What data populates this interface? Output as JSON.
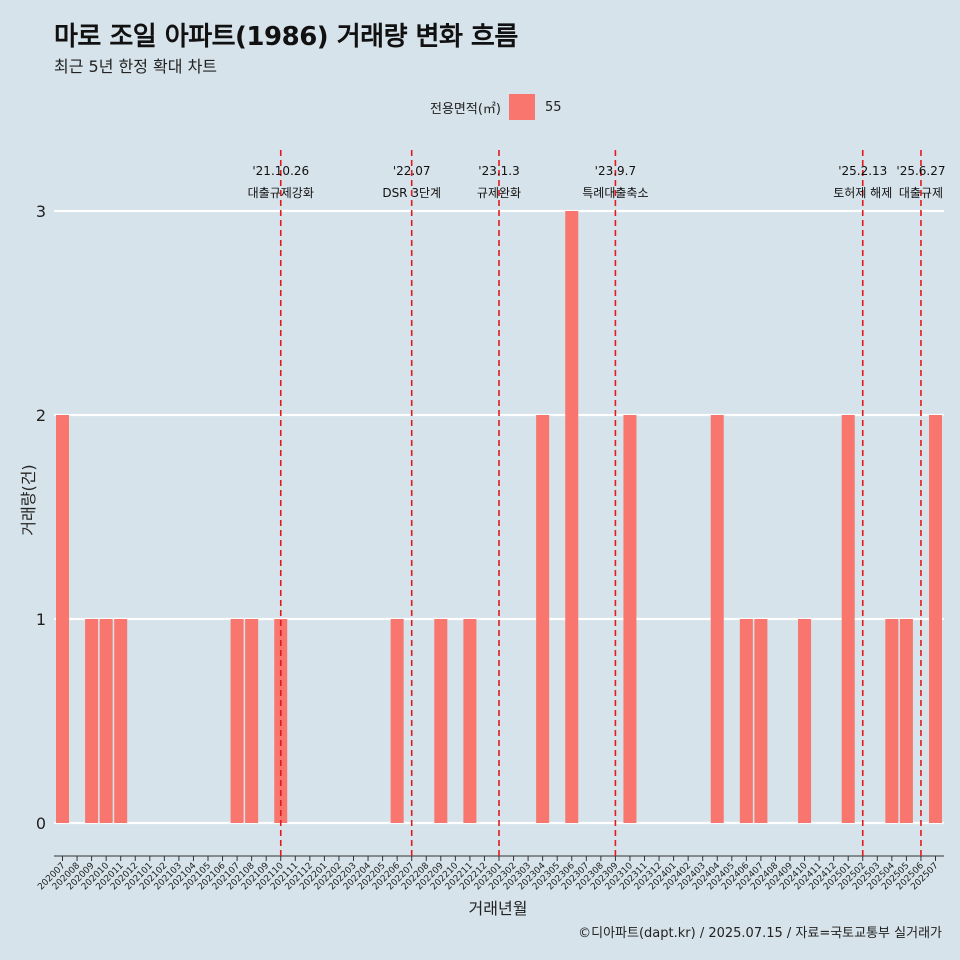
{
  "title": "마로 조일 아파트(1986) 거래량 변화 흐름",
  "subtitle": "최근 5년 한정 확대 차트",
  "caption": "©디아파트(dapt.kr) / 2025.07.15 / 자료=국토교통부 실거래가",
  "legend": {
    "title": "전용면적(㎡)",
    "item": "55"
  },
  "colors": {
    "background": "#d6e3ea",
    "bar": "#f8766d",
    "event_line": "#e31a1c",
    "grid": "#ffffff"
  },
  "chart_data": {
    "type": "bar",
    "xlabel": "거래년월",
    "ylabel": "거래량(건)",
    "ylim": [
      0,
      3
    ],
    "yticks": [
      0,
      1,
      2,
      3
    ],
    "categories": [
      "202007",
      "202008",
      "202009",
      "202010",
      "202011",
      "202012",
      "202101",
      "202102",
      "202103",
      "202104",
      "202105",
      "202106",
      "202107",
      "202108",
      "202109",
      "202110",
      "202111",
      "202112",
      "202201",
      "202202",
      "202203",
      "202204",
      "202205",
      "202206",
      "202207",
      "202208",
      "202209",
      "202210",
      "202211",
      "202212",
      "202301",
      "202302",
      "202303",
      "202304",
      "202305",
      "202306",
      "202307",
      "202308",
      "202309",
      "202310",
      "202311",
      "202312",
      "202401",
      "202402",
      "202403",
      "202404",
      "202405",
      "202406",
      "202407",
      "202408",
      "202409",
      "202410",
      "202411",
      "202412",
      "202501",
      "202502",
      "202503",
      "202504",
      "202505",
      "202506",
      "202507"
    ],
    "series": [
      {
        "name": "55",
        "values": [
          2,
          0,
          1,
          1,
          1,
          0,
          0,
          0,
          0,
          0,
          0,
          0,
          1,
          1,
          0,
          1,
          0,
          0,
          0,
          0,
          0,
          0,
          0,
          1,
          0,
          0,
          1,
          0,
          1,
          0,
          0,
          0,
          0,
          2,
          0,
          3,
          0,
          0,
          0,
          2,
          0,
          0,
          0,
          0,
          0,
          2,
          0,
          1,
          1,
          0,
          0,
          1,
          0,
          0,
          2,
          0,
          0,
          1,
          1,
          0,
          2
        ]
      }
    ],
    "events": [
      {
        "x": "202110",
        "date": "'21.10.26",
        "label": "대출규제강화"
      },
      {
        "x": "202207",
        "date": "'22.07",
        "label": "DSR 3단계"
      },
      {
        "x": "202301",
        "date": "'23.1.3",
        "label": "규제완화"
      },
      {
        "x": "202309",
        "date": "'23.9.7",
        "label": "특례대출축소"
      },
      {
        "x": "202502",
        "date": "'25.2.13",
        "label": "토허제 해제"
      },
      {
        "x": "202506",
        "date": "'25.6.27",
        "label": "대출규제"
      }
    ]
  }
}
